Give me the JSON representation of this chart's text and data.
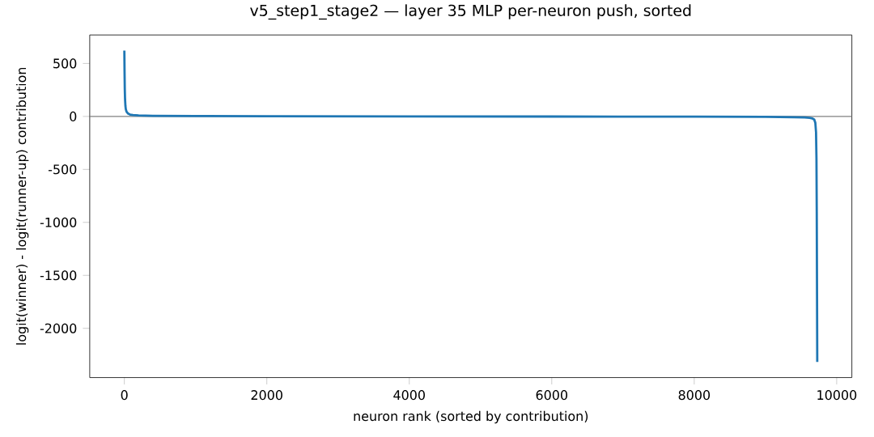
{
  "chart_data": {
    "type": "line",
    "title": "v5_step1_stage2 — layer 35 MLP per-neuron push, sorted",
    "xlabel": "neuron rank (sorted by contribution)",
    "ylabel": "logit(winner) - logit(runner-up) contribution",
    "x": [
      0,
      3,
      6,
      10,
      15,
      20,
      30,
      50,
      80,
      120,
      200,
      400,
      1000,
      2000,
      4000,
      6000,
      8000,
      9000,
      9400,
      9550,
      9620,
      9660,
      9685,
      9700,
      9710,
      9716,
      9720,
      9724,
      9727
    ],
    "series": [
      {
        "color": "#1f77b4",
        "values": [
          622,
          420,
          260,
          160,
          100,
          70,
          45,
          28,
          18,
          13,
          9,
          6,
          4,
          2,
          0,
          -1,
          -2,
          -4,
          -7,
          -10,
          -14,
          -20,
          -30,
          -60,
          -150,
          -400,
          -900,
          -1700,
          -2318
        ]
      }
    ],
    "xlim": [
      -486,
      10213
    ],
    "ylim": [
      -2465,
      769
    ],
    "xticks": [
      0,
      2000,
      4000,
      6000,
      8000,
      10000
    ],
    "yticks": [
      -2000,
      -1500,
      -1000,
      -500,
      0,
      500
    ],
    "ref_lines": [
      {
        "axis": "y",
        "value": 0,
        "color": "#808080"
      }
    ],
    "grid": false
  }
}
